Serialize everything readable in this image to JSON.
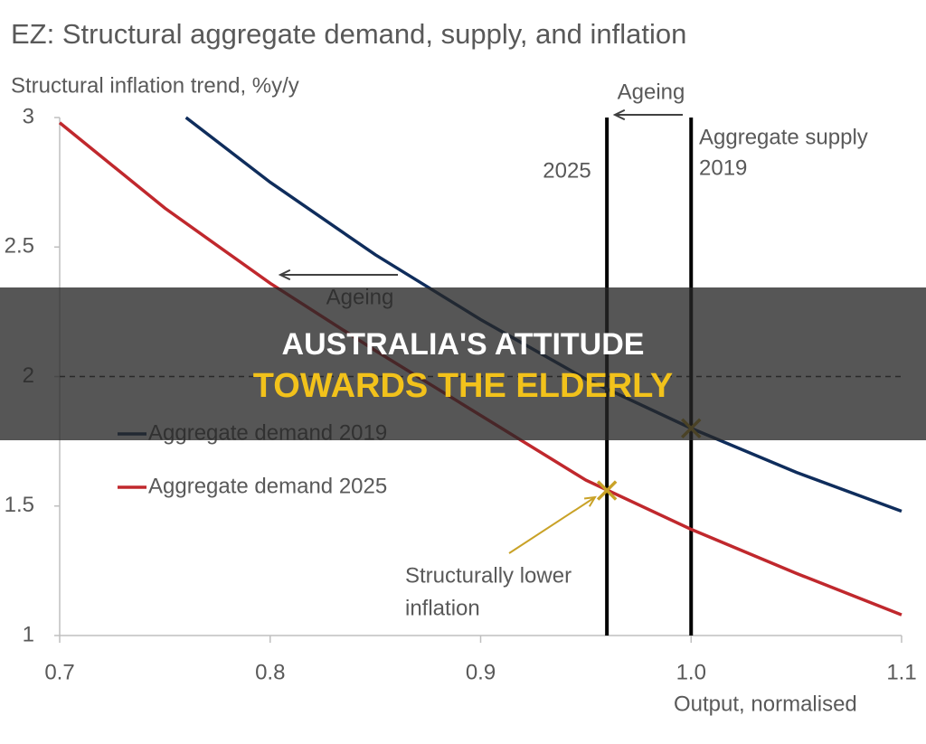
{
  "chart_data": {
    "type": "line",
    "title": "EZ: Structural aggregate demand, supply, and inflation",
    "y_label": "Structural inflation trend, %y/y",
    "x_label": "Output, normalised",
    "xlim": [
      0.7,
      1.1
    ],
    "ylim": [
      1,
      3
    ],
    "xticks": [
      0.7,
      0.8,
      0.9,
      {
        "value": 1,
        "label": "1.0"
      },
      1.1
    ],
    "yticks": [
      1,
      1.5,
      2,
      2.5,
      3
    ],
    "series": [
      {
        "name": "Aggregate demand 2019",
        "color": "#0f2d5c",
        "x": [
          0.76,
          0.8,
          0.85,
          0.9,
          0.95,
          1.0,
          1.05,
          1.1
        ],
        "values": [
          3.0,
          2.75,
          2.47,
          2.22,
          1.99,
          1.8,
          1.63,
          1.48
        ]
      },
      {
        "name": "Aggregate demand 2025",
        "color": "#c0282d",
        "x": [
          0.7,
          0.75,
          0.8,
          0.85,
          0.9,
          0.95,
          1.0,
          1.05,
          1.1
        ],
        "values": [
          2.98,
          2.65,
          2.36,
          2.1,
          1.85,
          1.6,
          1.41,
          1.24,
          1.08
        ]
      }
    ],
    "vlines": [
      {
        "x": 0.96,
        "label": [
          "2025"
        ]
      },
      {
        "x": 1.0,
        "label": [
          "Aggregate supply",
          "2019"
        ]
      }
    ],
    "hline": 2,
    "points": [
      {
        "x": 0.96,
        "y": 1.56
      },
      {
        "x": 1.0,
        "y": 1.8
      }
    ],
    "point_color": "#c9a227",
    "annotations": [
      [
        "Ageing"
      ],
      [
        "Ageing"
      ],
      [
        "Structurally lower",
        "inflation"
      ]
    ]
  },
  "banner": {
    "line1": "AUSTRALIA'S ATTITUDE",
    "line2": "TOWARDS THE ELDERLY"
  }
}
